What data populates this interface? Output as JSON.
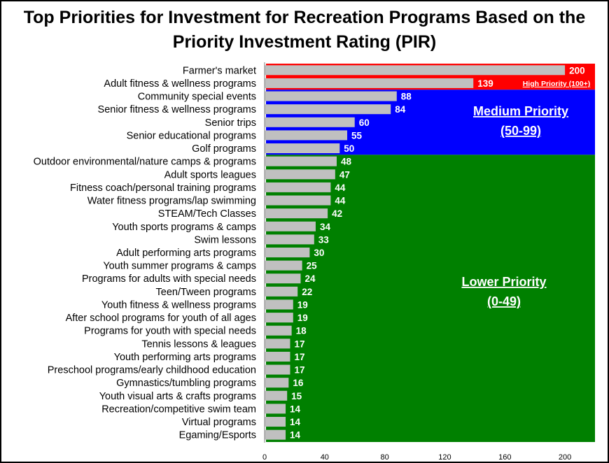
{
  "chart_data": {
    "type": "bar",
    "orientation": "horizontal",
    "title": "Top Priorities for Investment for Recreation Programs Based on the Priority Investment Rating (PIR)",
    "title_lines": [
      "Top Priorities for Investment for Recreation Programs Based on the",
      "Priority Investment Rating (PIR)"
    ],
    "categories": [
      "Farmer's market",
      "Adult fitness & wellness programs",
      "Community special events",
      "Senior fitness & wellness programs",
      "Senior trips",
      "Senior educational programs",
      "Golf programs",
      "Outdoor environmental/nature camps & programs",
      "Adult sports leagues",
      "Fitness coach/personal training programs",
      "Water fitness programs/lap swimming",
      "STEAM/Tech Classes",
      "Youth sports programs & camps",
      "Swim lessons",
      "Adult performing arts programs",
      "Youth summer programs & camps",
      "Programs for adults with special needs",
      "Teen/Tween programs",
      "Youth fitness & wellness programs",
      "After school programs for youth of all ages",
      "Programs for youth with special needs",
      "Tennis lessons & leagues",
      "Youth performing arts programs",
      "Preschool programs/early childhood education",
      "Gymnastics/tumbling programs",
      "Youth visual arts & crafts programs",
      "Recreation/competitive swim team",
      "Virtual programs",
      "Egaming/Esports"
    ],
    "values": [
      200,
      139,
      88,
      84,
      60,
      55,
      50,
      48,
      47,
      44,
      44,
      42,
      34,
      33,
      30,
      25,
      24,
      22,
      19,
      19,
      18,
      17,
      17,
      17,
      16,
      15,
      14,
      14,
      14
    ],
    "xlim": [
      0,
      220
    ],
    "xticks": [
      0,
      40,
      80,
      120,
      160,
      200
    ],
    "bands": [
      {
        "name": "high",
        "label": "High Priority (100+)",
        "rows": [
          0,
          1
        ],
        "color": "#ff0000"
      },
      {
        "name": "medium",
        "label_line1": "Medium Priority",
        "label_line2": "(50-99)",
        "rows": [
          2,
          6
        ],
        "color": "#0000ff"
      },
      {
        "name": "lower",
        "label_line1": "Lower Priority",
        "label_line2": "(0-49)",
        "rows": [
          7,
          28
        ],
        "color": "#008000"
      }
    ],
    "bar_color": "#c0c0c0"
  }
}
